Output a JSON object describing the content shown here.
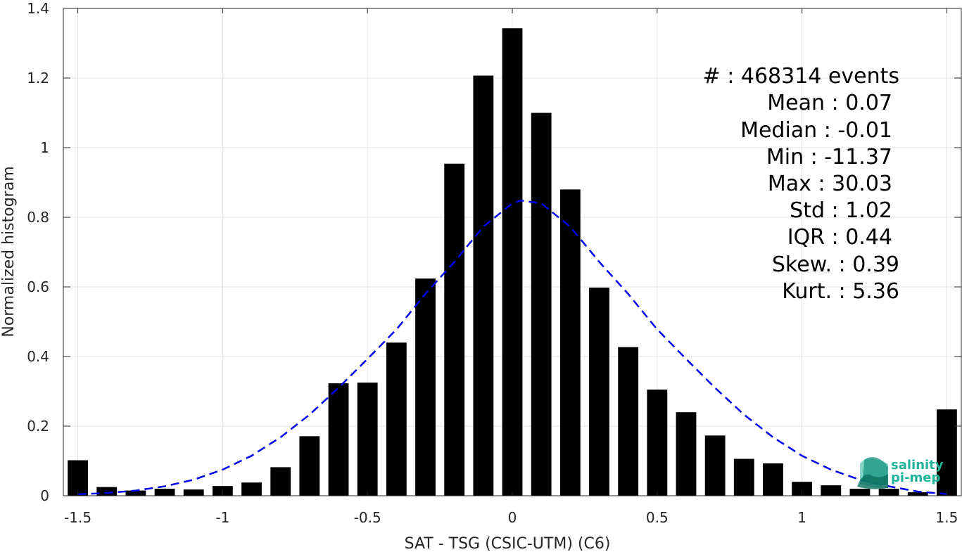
{
  "chart_data": {
    "type": "bar",
    "title": "",
    "xlabel": "SAT - TSG (CSIC-UTM) (C6)",
    "ylabel": "Normalized histogram",
    "xlim": [
      -1.55,
      1.55
    ],
    "ylim": [
      0,
      1.4
    ],
    "grid": true,
    "xticks": [
      -1.5,
      -1,
      -0.5,
      0,
      0.5,
      1,
      1.5
    ],
    "xtick_labels": [
      "-1.5",
      "-1",
      "-0.5",
      "0",
      "0.5",
      "1",
      "1.5"
    ],
    "yticks": [
      0,
      0.2,
      0.4,
      0.6,
      0.8,
      1,
      1.2,
      1.4
    ],
    "ytick_labels": [
      "0",
      "0.2",
      "0.4",
      "0.6",
      "0.8",
      "1",
      "1.2",
      "1.4"
    ],
    "bar_width": 0.07,
    "bin_centers": [
      -1.5,
      -1.4,
      -1.3,
      -1.2,
      -1.1,
      -1.0,
      -0.9,
      -0.8,
      -0.7,
      -0.6,
      -0.5,
      -0.4,
      -0.3,
      -0.2,
      -0.1,
      0.0,
      0.1,
      0.2,
      0.3,
      0.4,
      0.5,
      0.6,
      0.7,
      0.8,
      0.9,
      1.0,
      1.1,
      1.2,
      1.3,
      1.4,
      1.5
    ],
    "values": [
      0.102,
      0.025,
      0.015,
      0.02,
      0.018,
      0.028,
      0.038,
      0.082,
      0.171,
      0.323,
      0.325,
      0.44,
      0.624,
      0.954,
      1.207,
      1.343,
      1.1,
      0.88,
      0.598,
      0.427,
      0.305,
      0.24,
      0.173,
      0.106,
      0.093,
      0.04,
      0.03,
      0.02,
      0.02,
      0.01,
      0.248
    ],
    "bar_color": "#000000",
    "fit_curve": {
      "style": "dashed",
      "color": "#0000ee",
      "x": [
        -1.5,
        -1.4,
        -1.3,
        -1.2,
        -1.1,
        -1.0,
        -0.9,
        -0.8,
        -0.7,
        -0.6,
        -0.5,
        -0.4,
        -0.3,
        -0.2,
        -0.1,
        0.0,
        0.03,
        0.1,
        0.2,
        0.3,
        0.4,
        0.5,
        0.6,
        0.7,
        0.8,
        0.9,
        1.0,
        1.1,
        1.2,
        1.3,
        1.4,
        1.5
      ],
      "y": [
        0.004,
        0.008,
        0.015,
        0.027,
        0.046,
        0.075,
        0.115,
        0.168,
        0.233,
        0.31,
        0.393,
        0.478,
        0.58,
        0.672,
        0.773,
        0.84,
        0.848,
        0.84,
        0.773,
        0.672,
        0.58,
        0.478,
        0.393,
        0.31,
        0.233,
        0.168,
        0.115,
        0.075,
        0.046,
        0.027,
        0.012,
        0.005
      ]
    },
    "stats": [
      "#  : 468314 events",
      "Mean : 0.07",
      "Median : -0.01",
      "Min : -11.37",
      "Max : 30.03",
      "Std : 1.02",
      "IQR : 0.44",
      "Skew. : 0.39",
      "Kurt. : 5.36"
    ]
  },
  "logo": {
    "line1": "salinity",
    "line2": "pi-mep",
    "color": "#1fb39a"
  }
}
